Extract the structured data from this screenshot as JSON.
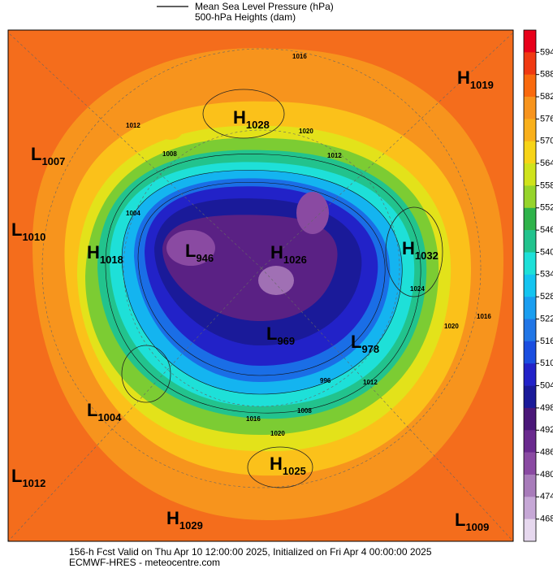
{
  "legend": {
    "mslp": "Mean Sea Level Pressure (hPa)",
    "heights": "500-hPa Heights (dam)"
  },
  "colorbar": {
    "colors": [
      "#e8001a",
      "#f03a12",
      "#f96a0e",
      "#f7941d",
      "#f9b01b",
      "#f7d417",
      "#cfe31c",
      "#96d42b",
      "#2fb34a",
      "#22c38d",
      "#1ee0d8",
      "#14c4f0",
      "#1a9ef0",
      "#2176e6",
      "#1a4ee0",
      "#2222c8",
      "#1a1a99",
      "#4a1778",
      "#6a2a8e",
      "#8a4aa2",
      "#a87cba",
      "#c6a8d6",
      "#e6d8ee",
      "#ffffff"
    ],
    "ticks": [
      594,
      588,
      582,
      576,
      570,
      564,
      558,
      552,
      546,
      540,
      534,
      528,
      522,
      516,
      510,
      504,
      498,
      492,
      486,
      480,
      474,
      468
    ]
  },
  "centers": [
    {
      "letter": "H",
      "value": 1028
    },
    {
      "letter": "H",
      "value": 1019
    },
    {
      "letter": "L",
      "value": 1007
    },
    {
      "letter": "L",
      "value": 1010
    },
    {
      "letter": "H",
      "value": 1018
    },
    {
      "letter": "L",
      "value": 946
    },
    {
      "letter": "H",
      "value": 1026
    },
    {
      "letter": "H",
      "value": 1032
    },
    {
      "letter": "L",
      "value": 969
    },
    {
      "letter": "L",
      "value": 978
    },
    {
      "letter": "L",
      "value": 1004
    },
    {
      "letter": "L",
      "value": 1012
    },
    {
      "letter": "H",
      "value": 1025
    },
    {
      "letter": "H",
      "value": 1029
    },
    {
      "letter": "L",
      "value": 1009
    }
  ],
  "isobar_labels": [
    1016,
    1012,
    1020,
    1008,
    1004,
    1024,
    1020,
    1016,
    1012,
    1016,
    1020,
    1008,
    996,
    1012
  ],
  "footer": {
    "valid": "156-h Fcst Valid on Thu Apr 10 12:00:00 2025, Initialized on Fri Apr  4 00:00:00 2025",
    "source": "ECMWF-HRES  - meteocentre.com"
  }
}
